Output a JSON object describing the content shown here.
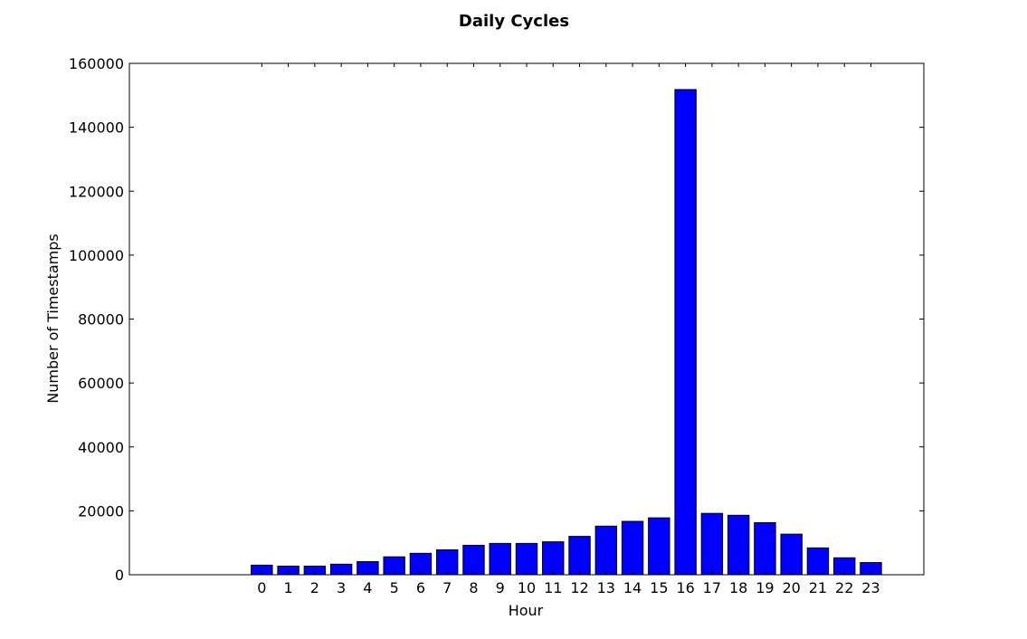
{
  "chart_data": {
    "type": "bar",
    "title": "Daily Cycles",
    "xlabel": "Hour",
    "ylabel": "Number of Timestamps",
    "categories": [
      "0",
      "1",
      "2",
      "3",
      "4",
      "5",
      "6",
      "7",
      "8",
      "9",
      "10",
      "11",
      "12",
      "13",
      "14",
      "15",
      "16",
      "17",
      "18",
      "19",
      "20",
      "21",
      "22",
      "23"
    ],
    "values": [
      3000,
      2700,
      2700,
      3300,
      4100,
      5600,
      6700,
      7800,
      9200,
      9800,
      9800,
      10300,
      12000,
      15200,
      16700,
      17800,
      151800,
      19200,
      18600,
      16300,
      12700,
      8400,
      5300,
      3800
    ],
    "xlim": [
      -5,
      25
    ],
    "ylim": [
      0,
      160000
    ],
    "yticks": [
      "0",
      "20000",
      "40000",
      "60000",
      "80000",
      "100000",
      "120000",
      "140000",
      "160000"
    ],
    "bar_color": "#0000ff",
    "edge_color": "#000000",
    "grid": false,
    "legend": "none"
  }
}
